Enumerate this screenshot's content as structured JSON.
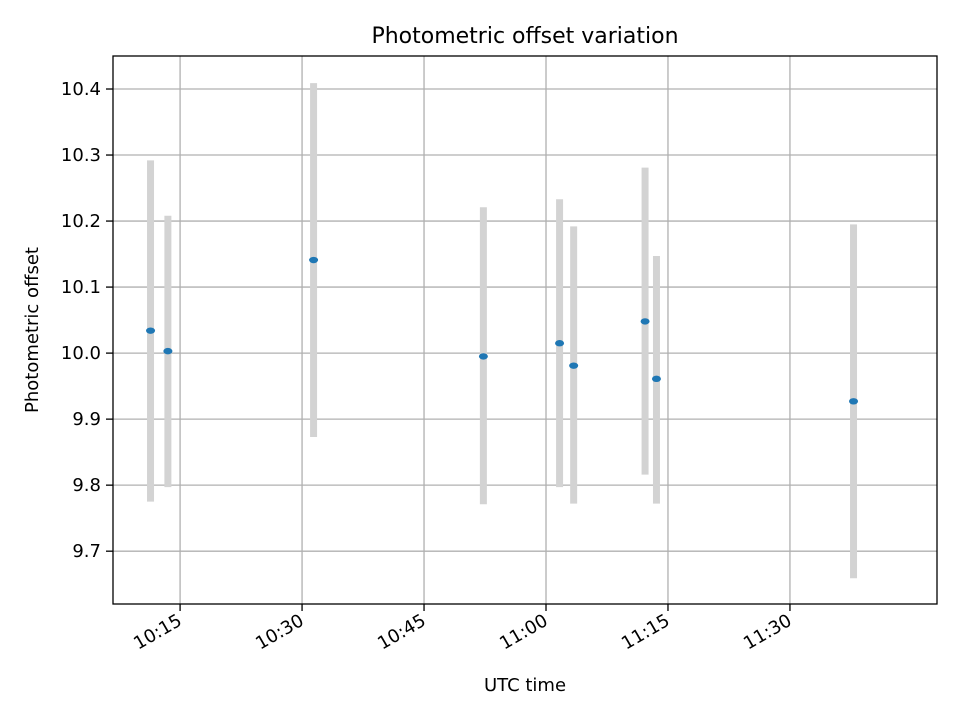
{
  "chart_data": {
    "type": "scatter",
    "title": "Photometric offset variation",
    "xlabel": "UTC time",
    "ylabel": "Photometric offset",
    "x_axis_type": "time",
    "xlim": [
      "10:06:45",
      "11:48:05"
    ],
    "ylim": [
      9.62,
      10.45
    ],
    "x_ticks": [
      "10:15",
      "10:30",
      "10:45",
      "11:00",
      "11:15",
      "11:30"
    ],
    "y_ticks": [
      9.7,
      9.8,
      9.9,
      10.0,
      10.1,
      10.2,
      10.3,
      10.4
    ],
    "y_tick_labels": [
      "9.7",
      "9.8",
      "9.9",
      "10.0",
      "10.1",
      "10.2",
      "10.3",
      "10.4"
    ],
    "grid": true,
    "legend": "none",
    "colors": {
      "point": "#1f77b4",
      "error_bar": "#d3d3d3",
      "grid": "#b0b0b0",
      "axes": "#000000"
    },
    "points": [
      {
        "x": "10:11:22",
        "y": 10.034,
        "y_low": 9.775,
        "y_high": 10.292
      },
      {
        "x": "10:13:30",
        "y": 10.003,
        "y_low": 9.797,
        "y_high": 10.208
      },
      {
        "x": "10:31:25",
        "y": 10.141,
        "y_low": 9.873,
        "y_high": 10.409
      },
      {
        "x": "10:52:18",
        "y": 9.995,
        "y_low": 9.771,
        "y_high": 10.221
      },
      {
        "x": "11:01:40",
        "y": 10.015,
        "y_low": 9.797,
        "y_high": 10.233
      },
      {
        "x": "11:03:24",
        "y": 9.981,
        "y_low": 9.772,
        "y_high": 10.192
      },
      {
        "x": "11:12:11",
        "y": 10.048,
        "y_low": 9.816,
        "y_high": 10.281
      },
      {
        "x": "11:13:35",
        "y": 9.961,
        "y_low": 9.772,
        "y_high": 10.147
      },
      {
        "x": "11:37:49",
        "y": 9.927,
        "y_low": 9.659,
        "y_high": 10.195
      }
    ]
  }
}
